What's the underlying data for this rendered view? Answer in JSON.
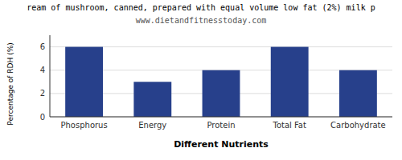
{
  "chart_data": {
    "type": "bar",
    "title": "ream of mushroom, canned, prepared with equal volume low fat (2%) milk p",
    "subtitle": "www.dietandfitnesstoday.com",
    "categories": [
      "Phosphorus",
      "Energy",
      "Protein",
      "Total Fat",
      "Carbohydrate"
    ],
    "values": [
      6.0,
      3.0,
      4.0,
      6.0,
      4.0
    ],
    "color": "#27408b",
    "xlabel": "Different Nutrients",
    "ylabel": "Percentage of RDH (%)",
    "ylim": [
      0,
      7
    ],
    "yticks": [
      0,
      2,
      4,
      6
    ],
    "grid": true
  }
}
